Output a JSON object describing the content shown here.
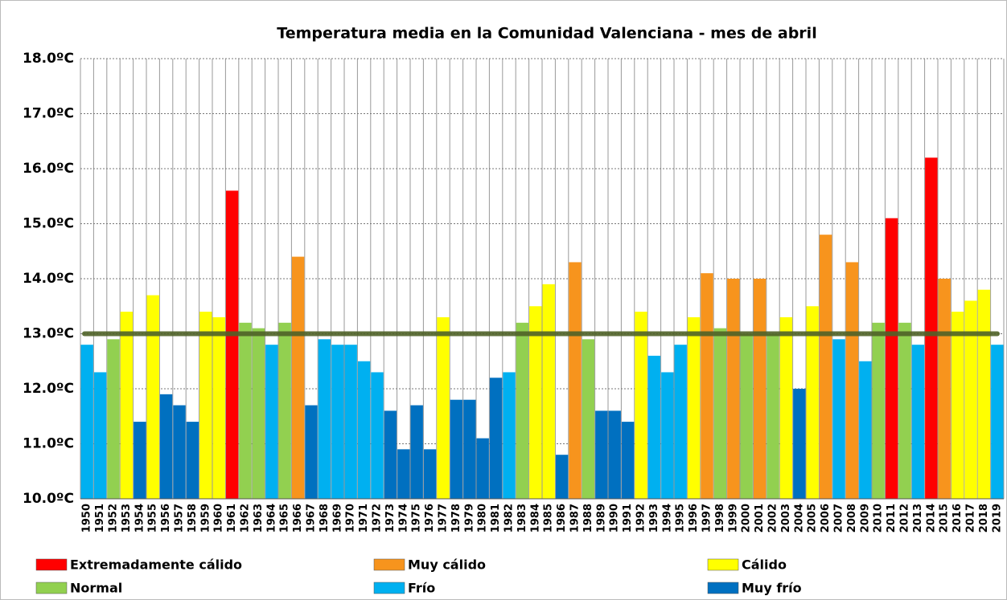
{
  "chart_data": {
    "type": "bar",
    "title": "Temperatura media en la Comunidad Valenciana - mes de abril",
    "categories": [
      "1950",
      "1951",
      "1952",
      "1953",
      "1954",
      "1955",
      "1956",
      "1957",
      "1958",
      "1959",
      "1960",
      "1961",
      "1962",
      "1963",
      "1964",
      "1965",
      "1966",
      "1967",
      "1968",
      "1969",
      "1970",
      "1971",
      "1972",
      "1973",
      "1974",
      "1975",
      "1976",
      "1977",
      "1978",
      "1979",
      "1980",
      "1981",
      "1982",
      "1983",
      "1984",
      "1985",
      "1986",
      "1987",
      "1988",
      "1989",
      "1990",
      "1991",
      "1992",
      "1993",
      "1994",
      "1995",
      "1996",
      "1997",
      "1998",
      "1999",
      "2000",
      "2001",
      "2002",
      "2003",
      "2004",
      "2005",
      "2006",
      "2007",
      "2008",
      "2009",
      "2010",
      "2011",
      "2012",
      "2013",
      "2014",
      "2015",
      "2016",
      "2017",
      "2018",
      "2019"
    ],
    "series": [
      {
        "name": "Extremadamente cálido",
        "color": "#ff0000",
        "values": [
          null,
          null,
          null,
          null,
          null,
          null,
          null,
          null,
          null,
          null,
          null,
          15.6,
          null,
          null,
          null,
          null,
          null,
          null,
          null,
          null,
          null,
          null,
          null,
          null,
          null,
          null,
          null,
          null,
          null,
          null,
          null,
          null,
          null,
          null,
          null,
          null,
          null,
          null,
          null,
          null,
          null,
          null,
          null,
          null,
          null,
          null,
          null,
          null,
          null,
          null,
          null,
          null,
          null,
          null,
          null,
          null,
          null,
          null,
          null,
          null,
          null,
          15.1,
          null,
          null,
          16.2,
          null,
          null,
          null,
          null,
          null
        ]
      },
      {
        "name": "Muy cálido",
        "color": "#f7941d",
        "values": [
          null,
          null,
          null,
          null,
          null,
          null,
          null,
          null,
          null,
          null,
          null,
          null,
          null,
          null,
          null,
          null,
          14.4,
          null,
          null,
          null,
          null,
          null,
          null,
          null,
          null,
          null,
          null,
          null,
          null,
          null,
          null,
          null,
          null,
          null,
          null,
          null,
          null,
          14.3,
          null,
          null,
          null,
          null,
          null,
          null,
          null,
          null,
          null,
          14.1,
          null,
          14.0,
          null,
          14.0,
          null,
          null,
          null,
          null,
          14.8,
          null,
          14.3,
          null,
          null,
          null,
          null,
          null,
          null,
          14.0,
          null,
          null,
          null,
          null
        ]
      },
      {
        "name": "Cálido",
        "color": "#ffff00",
        "values": [
          null,
          null,
          null,
          13.4,
          null,
          13.7,
          null,
          null,
          null,
          13.4,
          13.3,
          null,
          null,
          null,
          null,
          null,
          null,
          null,
          null,
          null,
          null,
          null,
          null,
          null,
          null,
          null,
          null,
          13.3,
          null,
          null,
          null,
          null,
          null,
          null,
          13.5,
          13.9,
          null,
          null,
          null,
          null,
          null,
          null,
          13.4,
          null,
          null,
          null,
          13.3,
          null,
          null,
          null,
          null,
          null,
          null,
          13.3,
          null,
          13.5,
          null,
          null,
          null,
          null,
          null,
          null,
          null,
          null,
          null,
          null,
          13.4,
          13.6,
          13.8,
          null
        ]
      },
      {
        "name": "Normal",
        "color": "#92d050",
        "values": [
          null,
          null,
          12.9,
          null,
          null,
          null,
          null,
          null,
          null,
          null,
          null,
          null,
          13.2,
          13.1,
          null,
          13.2,
          null,
          null,
          null,
          null,
          null,
          null,
          null,
          null,
          null,
          null,
          null,
          null,
          null,
          null,
          null,
          null,
          null,
          13.2,
          null,
          null,
          null,
          null,
          12.9,
          null,
          null,
          null,
          null,
          null,
          null,
          null,
          null,
          null,
          13.1,
          null,
          13.0,
          null,
          13.0,
          null,
          null,
          null,
          null,
          null,
          null,
          null,
          13.2,
          null,
          13.2,
          null,
          null,
          null,
          null,
          null,
          null,
          null
        ]
      },
      {
        "name": "Frío",
        "color": "#00b0f0",
        "values": [
          12.8,
          12.3,
          null,
          null,
          null,
          null,
          null,
          null,
          null,
          null,
          null,
          null,
          null,
          null,
          12.8,
          null,
          null,
          null,
          12.9,
          12.8,
          12.8,
          12.5,
          12.3,
          null,
          null,
          null,
          null,
          null,
          null,
          null,
          null,
          null,
          12.3,
          null,
          null,
          null,
          null,
          null,
          null,
          null,
          null,
          null,
          null,
          12.6,
          12.3,
          12.8,
          null,
          null,
          null,
          null,
          null,
          null,
          null,
          null,
          null,
          null,
          null,
          12.9,
          null,
          12.5,
          null,
          null,
          null,
          12.8,
          null,
          null,
          null,
          null,
          null,
          12.8
        ]
      },
      {
        "name": "Muy frío",
        "color": "#0070c0",
        "values": [
          null,
          null,
          null,
          null,
          11.4,
          null,
          11.9,
          11.7,
          11.4,
          null,
          null,
          null,
          null,
          null,
          null,
          null,
          null,
          11.7,
          null,
          null,
          null,
          null,
          null,
          11.6,
          10.9,
          11.7,
          10.9,
          null,
          11.8,
          11.8,
          11.1,
          12.2,
          null,
          null,
          null,
          null,
          10.8,
          null,
          null,
          11.6,
          11.6,
          11.4,
          null,
          null,
          null,
          null,
          null,
          null,
          null,
          null,
          null,
          null,
          null,
          null,
          12.0,
          null,
          null,
          null,
          null,
          null,
          null,
          null,
          null,
          null,
          null,
          null,
          null,
          null,
          null,
          null
        ]
      }
    ],
    "reference_line": {
      "value": 13.0,
      "color": "#4f6228"
    },
    "ylim": [
      10,
      18
    ],
    "yticks": [
      {
        "value": 10,
        "label": "10.0ºC"
      },
      {
        "value": 11,
        "label": "11.0ºC"
      },
      {
        "value": 12,
        "label": "12.0ºC"
      },
      {
        "value": 13,
        "label": "13.0ºC"
      },
      {
        "value": 14,
        "label": "14.0ºC"
      },
      {
        "value": 15,
        "label": "15.0ºC"
      },
      {
        "value": 16,
        "label": "16.0ºC"
      },
      {
        "value": 17,
        "label": "17.0ºC"
      },
      {
        "value": 18,
        "label": "18.0ºC"
      }
    ],
    "grid": true
  }
}
